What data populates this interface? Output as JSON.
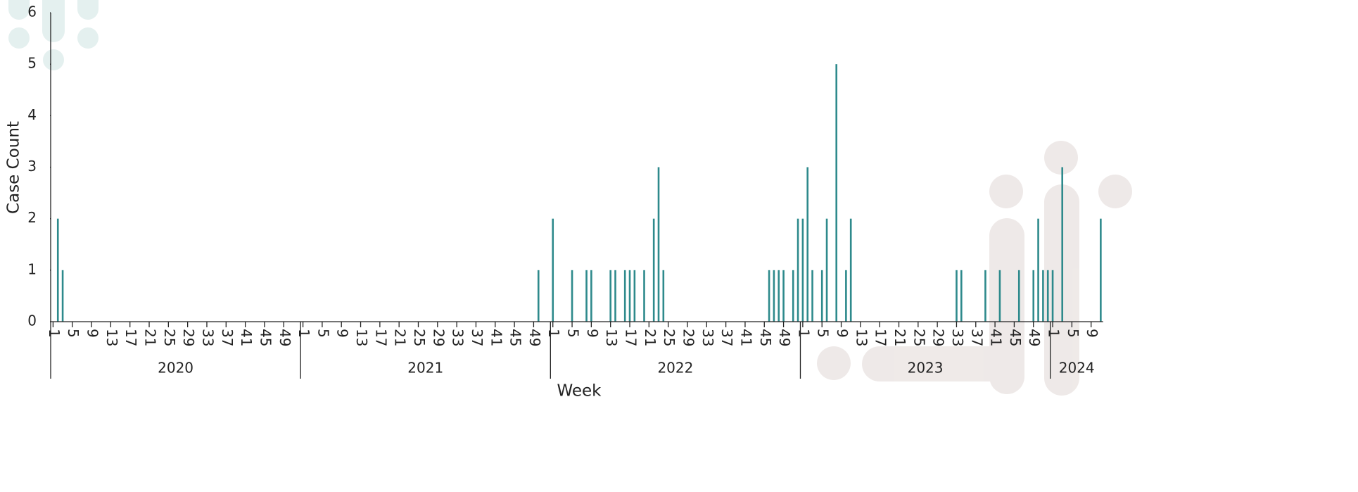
{
  "chart_data": {
    "type": "bar",
    "y_label": "Case Count",
    "x_label": "Week",
    "color": "#2e8a8c",
    "ylim": [
      0,
      6
    ],
    "yticks": [
      0,
      1,
      2,
      3,
      4,
      5,
      6
    ],
    "groups": [
      {
        "name": "2020",
        "categories": [
          1,
          null,
          null,
          null,
          5,
          null,
          null,
          null,
          9,
          null,
          null,
          null,
          13,
          null,
          null,
          null,
          17,
          null,
          null,
          null,
          21,
          null,
          null,
          null,
          25,
          null,
          null,
          null,
          29,
          null,
          null,
          null,
          33,
          null,
          null,
          null,
          37,
          null,
          null,
          null,
          41,
          null,
          null,
          null,
          45,
          null,
          null,
          null,
          49,
          null,
          null,
          null
        ],
        "values": [
          0,
          2,
          1,
          0,
          0,
          0,
          0,
          0,
          0,
          0,
          0,
          0,
          0,
          0,
          0,
          0,
          0,
          0,
          0,
          0,
          0,
          0,
          0,
          0,
          0,
          0,
          0,
          0,
          0,
          0,
          0,
          0,
          0,
          0,
          0,
          0,
          0,
          0,
          0,
          0,
          0,
          0,
          0,
          0,
          0,
          0,
          0,
          0,
          0,
          0,
          0,
          0
        ]
      },
      {
        "name": "2021",
        "categories": [
          1,
          null,
          null,
          null,
          5,
          null,
          null,
          null,
          9,
          null,
          null,
          null,
          13,
          null,
          null,
          null,
          17,
          null,
          null,
          null,
          21,
          null,
          null,
          null,
          25,
          null,
          null,
          null,
          29,
          null,
          null,
          null,
          33,
          null,
          null,
          null,
          37,
          null,
          null,
          null,
          41,
          null,
          null,
          null,
          45,
          null,
          null,
          null,
          49,
          null,
          null,
          null
        ],
        "values": [
          0,
          0,
          0,
          0,
          0,
          0,
          0,
          0,
          0,
          0,
          0,
          0,
          0,
          0,
          0,
          0,
          0,
          0,
          0,
          0,
          0,
          0,
          0,
          0,
          0,
          0,
          0,
          0,
          0,
          0,
          0,
          0,
          0,
          0,
          0,
          0,
          0,
          0,
          0,
          0,
          0,
          0,
          0,
          0,
          0,
          0,
          0,
          0,
          0,
          1,
          0,
          0
        ]
      },
      {
        "name": "2022",
        "categories": [
          1,
          null,
          null,
          null,
          5,
          null,
          null,
          null,
          9,
          null,
          null,
          null,
          13,
          null,
          null,
          null,
          17,
          null,
          null,
          null,
          21,
          null,
          null,
          null,
          25,
          null,
          null,
          null,
          29,
          null,
          null,
          null,
          33,
          null,
          null,
          null,
          37,
          null,
          null,
          null,
          41,
          null,
          null,
          null,
          45,
          null,
          null,
          null,
          49,
          null,
          null,
          null
        ],
        "values": [
          2,
          0,
          0,
          0,
          1,
          0,
          0,
          1,
          1,
          0,
          0,
          0,
          1,
          1,
          0,
          1,
          1,
          1,
          0,
          1,
          0,
          2,
          3,
          1,
          0,
          0,
          0,
          0,
          0,
          0,
          0,
          0,
          0,
          0,
          0,
          0,
          0,
          0,
          0,
          0,
          0,
          0,
          0,
          0,
          0,
          1,
          1,
          1,
          1,
          0,
          1,
          2
        ]
      },
      {
        "name": "2023",
        "categories": [
          1,
          null,
          null,
          null,
          5,
          null,
          null,
          null,
          9,
          null,
          null,
          null,
          13,
          null,
          null,
          null,
          17,
          null,
          null,
          null,
          21,
          null,
          null,
          null,
          25,
          null,
          null,
          null,
          29,
          null,
          null,
          null,
          33,
          null,
          null,
          null,
          37,
          null,
          null,
          null,
          41,
          null,
          null,
          null,
          45,
          null,
          null,
          null,
          49,
          null,
          null,
          null
        ],
        "values": [
          2,
          3,
          1,
          0,
          1,
          2,
          0,
          5,
          0,
          1,
          2,
          0,
          0,
          0,
          0,
          0,
          0,
          0,
          0,
          0,
          0,
          0,
          0,
          0,
          0,
          0,
          0,
          0,
          0,
          0,
          0,
          0,
          1,
          1,
          0,
          0,
          0,
          0,
          1,
          0,
          0,
          1,
          0,
          0,
          0,
          1,
          0,
          0,
          1,
          2,
          1,
          1
        ]
      },
      {
        "name": "2024",
        "categories": [
          1,
          null,
          null,
          null,
          5,
          null,
          null,
          null,
          9,
          null,
          null
        ],
        "values": [
          1,
          0,
          3,
          0,
          0,
          0,
          0,
          0,
          0,
          0,
          2
        ]
      }
    ]
  }
}
